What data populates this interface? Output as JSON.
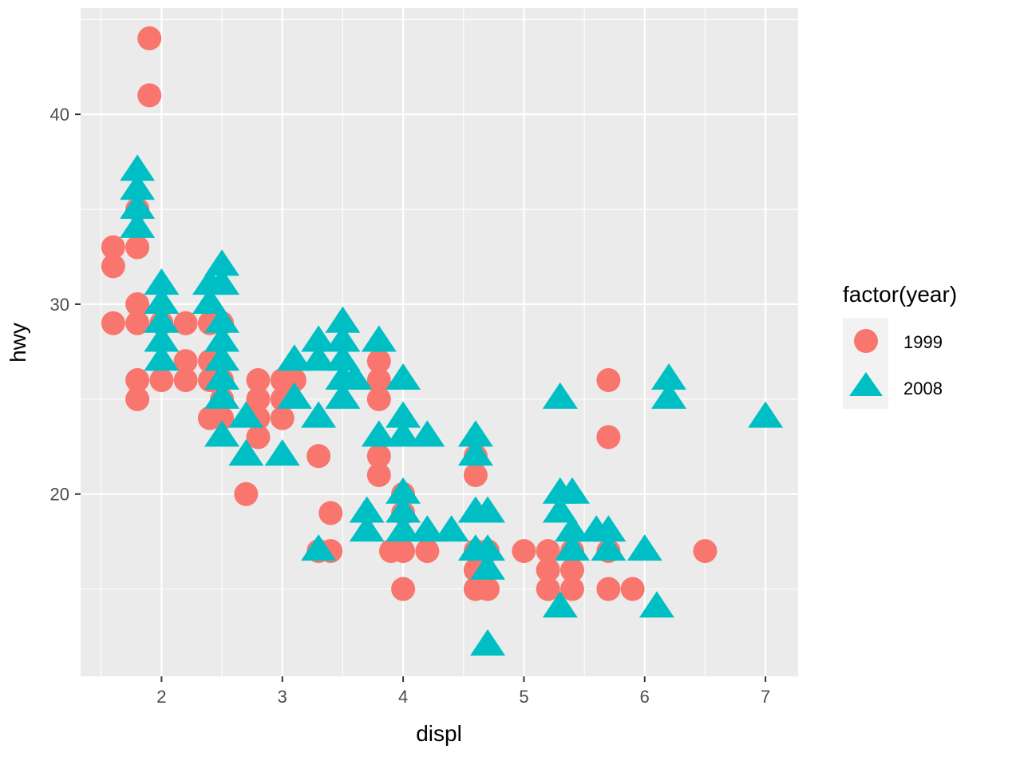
{
  "chart_data": {
    "type": "scatter",
    "xlabel": "displ",
    "ylabel": "hwy",
    "xlim": [
      1.33,
      7.27
    ],
    "ylim": [
      10.4,
      45.6
    ],
    "x_ticks": [
      2,
      3,
      4,
      5,
      6,
      7
    ],
    "y_ticks": [
      20,
      30,
      40
    ],
    "grid": true,
    "legend": {
      "title": "factor(year)",
      "position": "right",
      "entries": [
        {
          "label": "1999",
          "shape": "circle",
          "color": "#F8766D"
        },
        {
          "label": "2008",
          "shape": "triangle",
          "color": "#00BFC4"
        }
      ]
    },
    "colors": {
      "panel": "#EBEBEB",
      "grid": "#FFFFFF",
      "tick": "#333333"
    },
    "series": [
      {
        "name": "1999",
        "shape": "circle",
        "color": "#F8766D",
        "points": [
          [
            1.9,
            44
          ],
          [
            1.9,
            41
          ],
          [
            1.8,
            35
          ],
          [
            1.6,
            33
          ],
          [
            1.8,
            33
          ],
          [
            1.6,
            32
          ],
          [
            1.6,
            29
          ],
          [
            1.8,
            30
          ],
          [
            1.8,
            29
          ],
          [
            2.0,
            29
          ],
          [
            2.2,
            29
          ],
          [
            2.4,
            29
          ],
          [
            2.5,
            29
          ],
          [
            1.8,
            26
          ],
          [
            2.0,
            26
          ],
          [
            2.2,
            27
          ],
          [
            2.2,
            26
          ],
          [
            2.4,
            27
          ],
          [
            2.4,
            26
          ],
          [
            2.5,
            26
          ],
          [
            1.8,
            25
          ],
          [
            2.4,
            24
          ],
          [
            2.5,
            24
          ],
          [
            2.5,
            25
          ],
          [
            2.7,
            20
          ],
          [
            2.8,
            26
          ],
          [
            2.8,
            25
          ],
          [
            2.8,
            24
          ],
          [
            2.8,
            23
          ],
          [
            3.0,
            26
          ],
          [
            3.0,
            25
          ],
          [
            3.0,
            24
          ],
          [
            3.1,
            26
          ],
          [
            3.3,
            22
          ],
          [
            3.3,
            17
          ],
          [
            3.4,
            19
          ],
          [
            3.4,
            17
          ],
          [
            3.8,
            27
          ],
          [
            3.8,
            26
          ],
          [
            3.8,
            25
          ],
          [
            3.8,
            22
          ],
          [
            3.8,
            21
          ],
          [
            3.9,
            17
          ],
          [
            4.0,
            20
          ],
          [
            4.0,
            19
          ],
          [
            4.0,
            17
          ],
          [
            4.0,
            15
          ],
          [
            4.2,
            17
          ],
          [
            4.6,
            22
          ],
          [
            4.6,
            21
          ],
          [
            4.6,
            17
          ],
          [
            4.6,
            16
          ],
          [
            4.6,
            15
          ],
          [
            4.7,
            17
          ],
          [
            4.7,
            15
          ],
          [
            5.0,
            17
          ],
          [
            5.2,
            17
          ],
          [
            5.2,
            16
          ],
          [
            5.2,
            15
          ],
          [
            5.4,
            17
          ],
          [
            5.4,
            16
          ],
          [
            5.4,
            15
          ],
          [
            5.7,
            26
          ],
          [
            5.7,
            23
          ],
          [
            5.7,
            17
          ],
          [
            5.7,
            15
          ],
          [
            5.9,
            15
          ],
          [
            6.5,
            17
          ]
        ]
      },
      {
        "name": "2008",
        "shape": "triangle",
        "color": "#00BFC4",
        "points": [
          [
            1.8,
            37
          ],
          [
            1.8,
            36
          ],
          [
            1.8,
            35
          ],
          [
            1.8,
            34
          ],
          [
            2.0,
            31
          ],
          [
            2.0,
            30
          ],
          [
            2.0,
            29
          ],
          [
            2.0,
            28
          ],
          [
            2.0,
            27
          ],
          [
            2.4,
            31
          ],
          [
            2.4,
            30
          ],
          [
            2.5,
            32
          ],
          [
            2.5,
            31
          ],
          [
            2.5,
            29
          ],
          [
            2.5,
            28
          ],
          [
            2.5,
            27
          ],
          [
            2.5,
            26
          ],
          [
            2.5,
            25
          ],
          [
            2.5,
            23
          ],
          [
            2.7,
            24
          ],
          [
            2.7,
            22
          ],
          [
            3.0,
            22
          ],
          [
            3.1,
            27
          ],
          [
            3.1,
            25
          ],
          [
            3.3,
            28
          ],
          [
            3.3,
            27
          ],
          [
            3.3,
            24
          ],
          [
            3.3,
            17
          ],
          [
            3.5,
            29
          ],
          [
            3.5,
            28
          ],
          [
            3.5,
            27
          ],
          [
            3.5,
            26
          ],
          [
            3.5,
            25
          ],
          [
            3.6,
            26
          ],
          [
            3.7,
            19
          ],
          [
            3.7,
            18
          ],
          [
            3.8,
            28
          ],
          [
            3.8,
            23
          ],
          [
            4.0,
            26
          ],
          [
            4.0,
            24
          ],
          [
            4.0,
            23
          ],
          [
            4.0,
            20
          ],
          [
            4.0,
            19
          ],
          [
            4.0,
            18
          ],
          [
            4.2,
            23
          ],
          [
            4.2,
            18
          ],
          [
            4.4,
            18
          ],
          [
            4.6,
            23
          ],
          [
            4.6,
            22
          ],
          [
            4.6,
            19
          ],
          [
            4.6,
            17
          ],
          [
            4.7,
            19
          ],
          [
            4.7,
            17
          ],
          [
            4.7,
            16
          ],
          [
            4.7,
            12
          ],
          [
            5.3,
            25
          ],
          [
            5.3,
            20
          ],
          [
            5.3,
            19
          ],
          [
            5.3,
            14
          ],
          [
            5.4,
            20
          ],
          [
            5.4,
            18
          ],
          [
            5.4,
            17
          ],
          [
            5.6,
            18
          ],
          [
            5.7,
            18
          ],
          [
            5.7,
            17
          ],
          [
            6.0,
            17
          ],
          [
            6.1,
            14
          ],
          [
            6.2,
            26
          ],
          [
            6.2,
            25
          ],
          [
            7.0,
            24
          ]
        ]
      }
    ]
  }
}
